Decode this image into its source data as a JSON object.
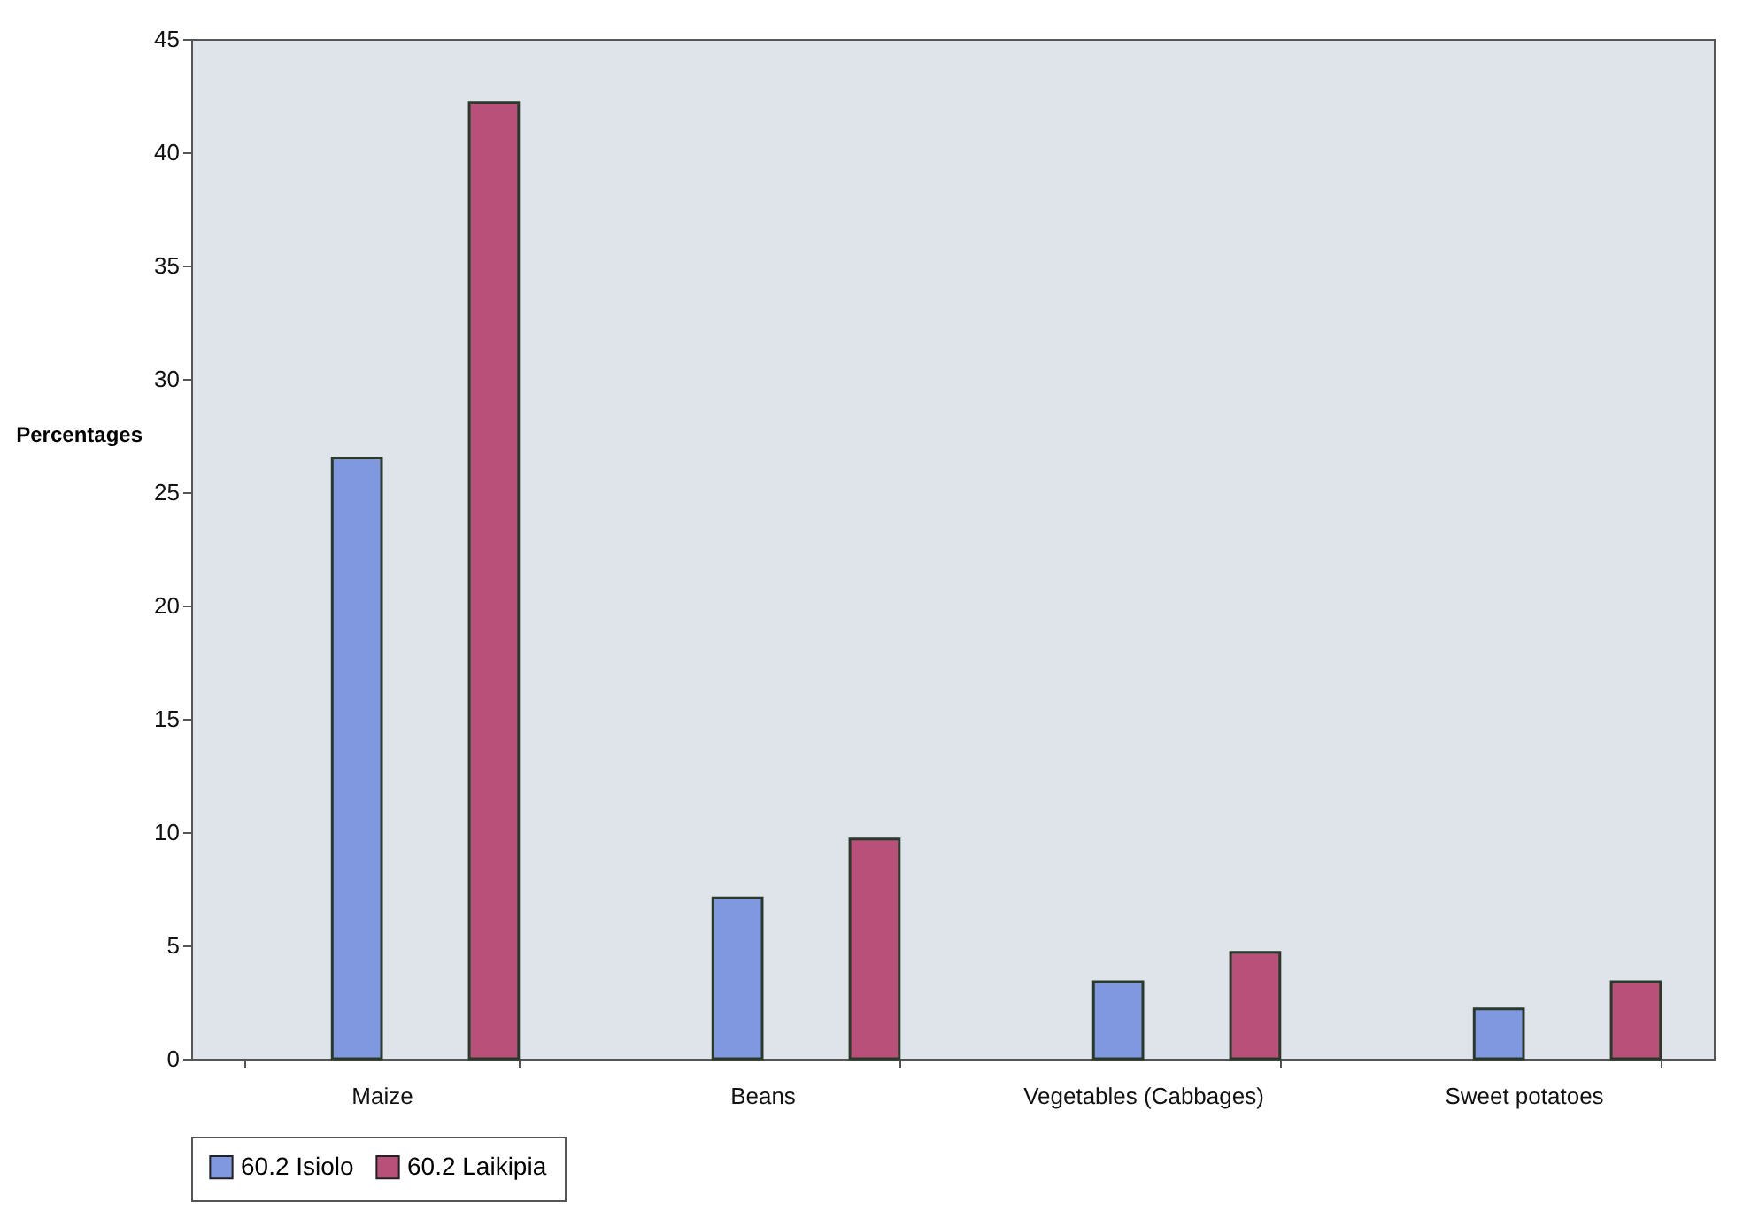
{
  "chart_data": {
    "type": "bar",
    "ylabel": "Percentages",
    "categories": [
      "Maize",
      "Beans",
      "Vegetables (Cabbages)",
      "Sweet potatoes"
    ],
    "series": [
      {
        "name": "60.2 Isiolo",
        "color": "#7f98e0",
        "values": [
          26.5,
          7.1,
          3.4,
          2.2
        ]
      },
      {
        "name": "60.2 Laikipia",
        "color": "#b8507a",
        "values": [
          42.2,
          9.7,
          4.7,
          3.4
        ]
      }
    ],
    "ylim": [
      0,
      45
    ],
    "yticks": [
      0,
      5,
      10,
      15,
      20,
      25,
      30,
      35,
      40,
      45
    ],
    "grid": false,
    "legend": "bottom"
  }
}
